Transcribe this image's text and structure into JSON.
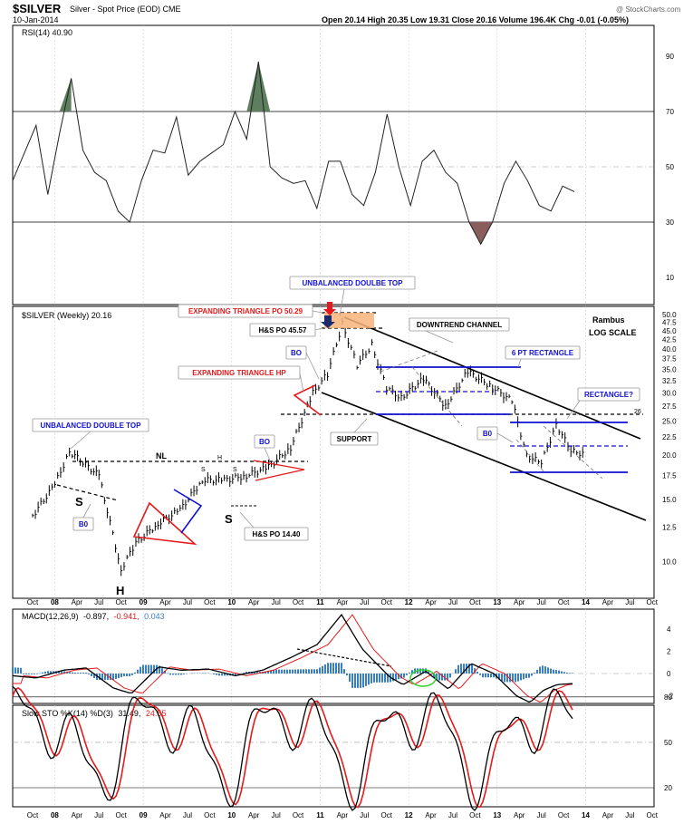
{
  "header": {
    "symbol": "$SILVER",
    "description": "Silver - Spot Price (EOD) CME",
    "date": "10-Jan-2014",
    "ohlc": "Open 20.14  High 20.35  Low 19.31  Close 20.16  Volume 196.4K  Chg -0.01 (-0.05%)",
    "watermark": "@ StockCharts.com"
  },
  "colors": {
    "black": "#000000",
    "red": "#e41a1c",
    "blue": "#1010d0",
    "rsi_green": "#5e7f5e",
    "rsi_brown": "#8a5d5d",
    "orange": "#f7b37a",
    "macd_signal": "#e41a1c",
    "macd_hist": "#3a7fc4"
  },
  "x_axis": {
    "ticks": [
      "Oct",
      "08",
      "Apr",
      "Jul",
      "Oct",
      "09",
      "Apr",
      "Jul",
      "Oct",
      "10",
      "Apr",
      "Jul",
      "Oct",
      "11",
      "Apr",
      "Jul",
      "Oct",
      "12",
      "Apr",
      "Jul",
      "Oct",
      "13",
      "Apr",
      "Jul",
      "Oct",
      "14",
      "Apr",
      "Jul",
      "Oct"
    ],
    "bold_ticks": [
      "08",
      "09",
      "10",
      "11",
      "12",
      "13",
      "14"
    ]
  },
  "rsi_panel": {
    "label": "RSI(14) 40.90",
    "ticks": [
      "90",
      "70",
      "50",
      "30",
      "10"
    ]
  },
  "price_panel": {
    "label": "$SILVER (Weekly) 20.16",
    "corner_note": [
      "Rambus",
      "LOG SCALE"
    ],
    "ticks": [
      "50.0",
      "47.5",
      "45.0",
      "42.5",
      "40.0",
      "37.5",
      "35.0",
      "32.5",
      "30.0",
      "27.5",
      "25.0",
      "22.5",
      "20.0",
      "17.5",
      "15.0",
      "12.5",
      "10.0"
    ],
    "annotations": {
      "unbalanced_top_left": "UNBALANCED DOUBLE TOP",
      "unbalanced_top_right": "UNBALANCED DOULBE TOP",
      "expanding_triangle_po": "EXPANDING TRIANGLE PO 50.29",
      "hs_po_45": "H&S PO 45.57",
      "downtrend_channel": "DOWNTREND CHANNEL",
      "bo_1": "BO",
      "expanding_triangle_hp": "EXPANDING TRIANGLE HP",
      "support": "SUPPORT",
      "six_pt_rectangle": "6 PT RECTANGLE",
      "rectangle_q": "RECTANGLE?",
      "b0_right": "B0",
      "nl": "NL",
      "bo_2": "BO",
      "b0_left": "B0",
      "hs_po_14": "H&S PO 14.40",
      "s_left": "S",
      "h": "H",
      "s_right": "S",
      "small_s1": "S",
      "small_h": "H",
      "small_s2": "S",
      "level_26": "26"
    }
  },
  "macd_panel": {
    "label_name": "MACD(12,26,9)",
    "label_macd": "-0.897,",
    "label_signal": "-0.941,",
    "label_hist": "0.043",
    "ticks": [
      "4",
      "2",
      "0",
      "-2"
    ]
  },
  "sto_panel": {
    "label_name": "Slow STO %K(14) %D(3)",
    "label_k": "31.49,",
    "label_d": "24.55",
    "ticks": [
      "80",
      "50",
      "20"
    ]
  },
  "chart_data": {
    "type": "line",
    "title": "$SILVER Silver - Spot Price (EOD) CME",
    "x_axis_dates": [
      "Oct",
      "08",
      "Apr",
      "Jul",
      "Oct",
      "09",
      "Apr",
      "Jul",
      "Oct",
      "10",
      "Apr",
      "Jul",
      "Oct",
      "11",
      "Apr",
      "Jul",
      "Oct",
      "12",
      "Apr",
      "Jul",
      "Oct",
      "13",
      "Apr",
      "Jul",
      "Oct",
      "14"
    ],
    "price_scale": "log",
    "ylim": [
      8.5,
      50
    ],
    "series": [
      {
        "name": "$SILVER (Weekly)",
        "x": [
          "2007-10",
          "2008-01",
          "2008-03",
          "2008-07",
          "2008-10",
          "2008-12",
          "2009-03",
          "2009-06",
          "2009-09",
          "2009-12",
          "2010-03",
          "2010-06",
          "2010-09",
          "2010-12",
          "2011-02",
          "2011-04",
          "2011-06",
          "2011-08",
          "2011-10",
          "2011-12",
          "2012-03",
          "2012-06",
          "2012-09",
          "2012-12",
          "2013-03",
          "2013-05",
          "2013-07",
          "2013-09",
          "2013-11",
          "2014-01"
        ],
        "values": [
          13.5,
          16.5,
          20.5,
          17.5,
          9.5,
          11.3,
          12.8,
          14.0,
          17.0,
          17.0,
          17.5,
          18.5,
          21.0,
          30.0,
          34.0,
          47.0,
          36.0,
          41.0,
          31.0,
          29.0,
          33.0,
          27.5,
          34.5,
          31.5,
          28.5,
          20.0,
          19.0,
          24.5,
          20.5,
          20.16
        ]
      }
    ],
    "rsi": {
      "name": "RSI(14)",
      "last": 40.9,
      "ylim": [
        0,
        100
      ],
      "values": [
        45,
        55,
        65,
        40,
        62,
        82,
        56,
        48,
        45,
        34,
        30,
        45,
        56,
        55,
        68,
        47,
        52,
        55,
        58,
        70,
        60,
        88,
        50,
        46,
        44,
        45,
        35,
        52,
        52,
        40,
        36,
        48,
        69,
        50,
        36,
        52,
        56,
        48,
        44,
        30,
        22,
        30,
        44,
        52,
        45,
        36,
        34,
        43,
        41
      ]
    },
    "macd": {
      "name": "MACD(12,26,9)",
      "macd": -0.897,
      "signal": -0.941,
      "histogram": 0.043,
      "ylim": [
        -3,
        6
      ]
    },
    "stochastic": {
      "name": "Slow STO %K(14) %D(3)",
      "k": 31.49,
      "d": 24.55,
      "ylim": [
        0,
        100
      ]
    }
  }
}
